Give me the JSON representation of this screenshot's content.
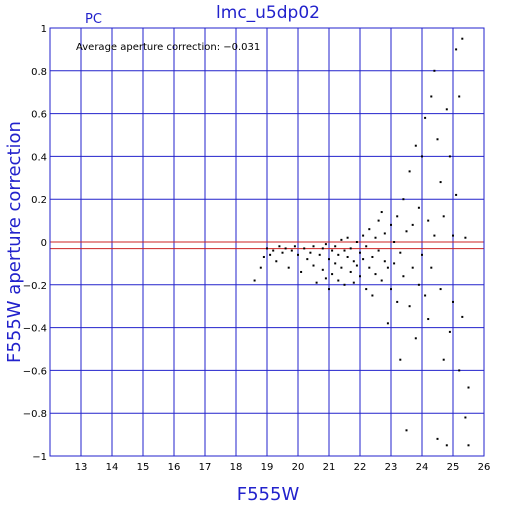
{
  "chart_data": {
    "type": "scatter",
    "title": "lmc_u5dp02",
    "corner_label": "PC",
    "annotation": "Average aperture correction: −0.031",
    "xlabel": "F555W",
    "ylabel": "F555W aperture correction",
    "xlim": [
      12,
      26
    ],
    "ylim": [
      -1,
      1
    ],
    "xticks": [
      13,
      14,
      15,
      16,
      17,
      18,
      19,
      20,
      21,
      22,
      23,
      24,
      25,
      26
    ],
    "yticks": [
      -1,
      -0.8,
      -0.6,
      -0.4,
      -0.2,
      0,
      0.2,
      0.4,
      0.6,
      0.8,
      1
    ],
    "ytick_labels": [
      "−1",
      "−0.8",
      "−0.6",
      "−0.4",
      "−0.2",
      "0",
      "0.2",
      "0.4",
      "0.6",
      "0.8",
      "1"
    ],
    "grid": true,
    "reference_lines": [
      {
        "y": 0,
        "color": "#cc2222"
      },
      {
        "y": -0.031,
        "color": "#cc2222"
      }
    ],
    "colors": {
      "axes": "#2222cc",
      "points": "#000000",
      "reference": "#cc2222"
    },
    "points": [
      [
        18.6,
        -0.18
      ],
      [
        18.8,
        -0.12
      ],
      [
        18.9,
        -0.07
      ],
      [
        19.0,
        -0.03
      ],
      [
        19.1,
        -0.06
      ],
      [
        19.2,
        -0.04
      ],
      [
        19.3,
        -0.09
      ],
      [
        19.4,
        -0.02
      ],
      [
        19.5,
        -0.05
      ],
      [
        19.6,
        -0.03
      ],
      [
        19.7,
        -0.12
      ],
      [
        19.8,
        -0.04
      ],
      [
        19.9,
        -0.02
      ],
      [
        20.0,
        -0.06
      ],
      [
        20.1,
        -0.14
      ],
      [
        20.2,
        -0.03
      ],
      [
        20.3,
        -0.08
      ],
      [
        20.4,
        -0.05
      ],
      [
        20.5,
        -0.11
      ],
      [
        20.5,
        -0.02
      ],
      [
        20.6,
        -0.19
      ],
      [
        20.7,
        -0.06
      ],
      [
        20.8,
        -0.13
      ],
      [
        20.8,
        -0.03
      ],
      [
        20.9,
        -0.17
      ],
      [
        20.9,
        -0.01
      ],
      [
        21.0,
        -0.08
      ],
      [
        21.0,
        -0.22
      ],
      [
        21.1,
        -0.04
      ],
      [
        21.1,
        -0.15
      ],
      [
        21.2,
        -0.02
      ],
      [
        21.2,
        -0.1
      ],
      [
        21.3,
        -0.06
      ],
      [
        21.3,
        -0.18
      ],
      [
        21.4,
        0.01
      ],
      [
        21.4,
        -0.12
      ],
      [
        21.5,
        -0.04
      ],
      [
        21.5,
        -0.2
      ],
      [
        21.6,
        -0.07
      ],
      [
        21.6,
        0.02
      ],
      [
        21.7,
        -0.14
      ],
      [
        21.7,
        -0.03
      ],
      [
        21.8,
        -0.09
      ],
      [
        21.8,
        -0.19
      ],
      [
        21.9,
        0.0
      ],
      [
        21.9,
        -0.11
      ],
      [
        22.0,
        -0.05
      ],
      [
        22.0,
        -0.16
      ],
      [
        22.1,
        0.03
      ],
      [
        22.1,
        -0.08
      ],
      [
        22.2,
        -0.22
      ],
      [
        22.2,
        -0.02
      ],
      [
        22.3,
        -0.12
      ],
      [
        22.3,
        0.06
      ],
      [
        22.4,
        -0.07
      ],
      [
        22.4,
        -0.25
      ],
      [
        22.5,
        0.02
      ],
      [
        22.5,
        -0.15
      ],
      [
        22.6,
        -0.04
      ],
      [
        22.6,
        0.1
      ],
      [
        22.7,
        -0.18
      ],
      [
        22.7,
        0.14
      ],
      [
        22.8,
        -0.09
      ],
      [
        22.8,
        0.04
      ],
      [
        22.9,
        -0.38
      ],
      [
        22.9,
        -0.12
      ],
      [
        23.0,
        0.08
      ],
      [
        23.0,
        -0.22
      ],
      [
        23.1,
        0.0
      ],
      [
        23.1,
        -0.1
      ],
      [
        23.2,
        -0.28
      ],
      [
        23.2,
        0.12
      ],
      [
        23.3,
        -0.05
      ],
      [
        23.3,
        -0.55
      ],
      [
        23.4,
        0.2
      ],
      [
        23.4,
        -0.16
      ],
      [
        23.5,
        -0.88
      ],
      [
        23.5,
        0.05
      ],
      [
        23.6,
        -0.3
      ],
      [
        23.6,
        0.33
      ],
      [
        23.7,
        -0.12
      ],
      [
        23.7,
        0.08
      ],
      [
        23.8,
        0.45
      ],
      [
        23.8,
        -0.45
      ],
      [
        23.9,
        -0.2
      ],
      [
        23.9,
        0.16
      ],
      [
        24.0,
        0.4
      ],
      [
        24.0,
        -0.06
      ],
      [
        24.1,
        -0.25
      ],
      [
        24.1,
        0.58
      ],
      [
        24.2,
        0.1
      ],
      [
        24.2,
        -0.36
      ],
      [
        24.3,
        0.68
      ],
      [
        24.3,
        -0.12
      ],
      [
        24.4,
        0.8
      ],
      [
        24.4,
        0.03
      ],
      [
        24.5,
        -0.92
      ],
      [
        24.5,
        0.48
      ],
      [
        24.6,
        -0.22
      ],
      [
        24.6,
        0.28
      ],
      [
        24.7,
        0.12
      ],
      [
        24.7,
        -0.55
      ],
      [
        24.8,
        -0.95
      ],
      [
        24.8,
        0.62
      ],
      [
        24.9,
        -0.42
      ],
      [
        24.9,
        0.4
      ],
      [
        25.0,
        0.03
      ],
      [
        25.0,
        -0.28
      ],
      [
        25.1,
        0.9
      ],
      [
        25.1,
        0.22
      ],
      [
        25.2,
        -0.6
      ],
      [
        25.2,
        0.68
      ],
      [
        25.3,
        0.95
      ],
      [
        25.3,
        -0.35
      ],
      [
        25.4,
        -0.82
      ],
      [
        25.4,
        0.02
      ],
      [
        25.5,
        -0.68
      ],
      [
        25.5,
        -0.95
      ]
    ]
  }
}
